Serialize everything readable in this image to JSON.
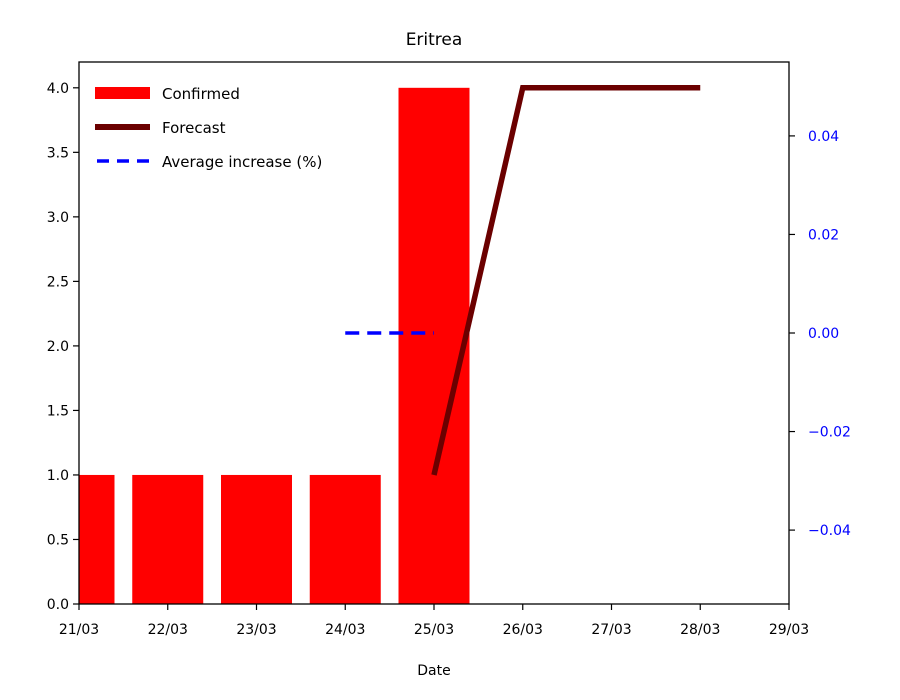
{
  "chart_data": {
    "type": "bar",
    "title": "Eritrea",
    "xlabel": "Date",
    "x_ticks": [
      "21/03",
      "22/03",
      "23/03",
      "24/03",
      "25/03",
      "26/03",
      "27/03",
      "28/03",
      "29/03"
    ],
    "ylim_left": [
      0,
      4.2
    ],
    "y_ticks_left": [
      "0.0",
      "0.5",
      "1.0",
      "1.5",
      "2.0",
      "2.5",
      "3.0",
      "3.5",
      "4.0"
    ],
    "ylim_right": [
      -0.055,
      0.055
    ],
    "y_ticks_right": [
      "−0.04",
      "−0.02",
      "0.00",
      "0.02",
      "0.04"
    ],
    "grid": false,
    "legend_position": "top-left",
    "series": [
      {
        "name": "Confirmed",
        "kind": "bar",
        "axis": "left",
        "color": "#ff0000",
        "x": [
          "21/03",
          "22/03",
          "23/03",
          "24/03",
          "25/03"
        ],
        "values": [
          1,
          1,
          1,
          1,
          4
        ]
      },
      {
        "name": "Forecast",
        "kind": "line",
        "axis": "left",
        "color": "#6b0000",
        "x": [
          "25/03",
          "26/03",
          "27/03",
          "28/03"
        ],
        "values": [
          1,
          4,
          4,
          4
        ]
      },
      {
        "name": "Average increase (%)",
        "kind": "dashed-line",
        "axis": "right",
        "color": "#0000ff",
        "x": [
          "24/03",
          "25/03"
        ],
        "values": [
          0,
          0
        ]
      }
    ],
    "right_axis_color": "#0000ff"
  }
}
